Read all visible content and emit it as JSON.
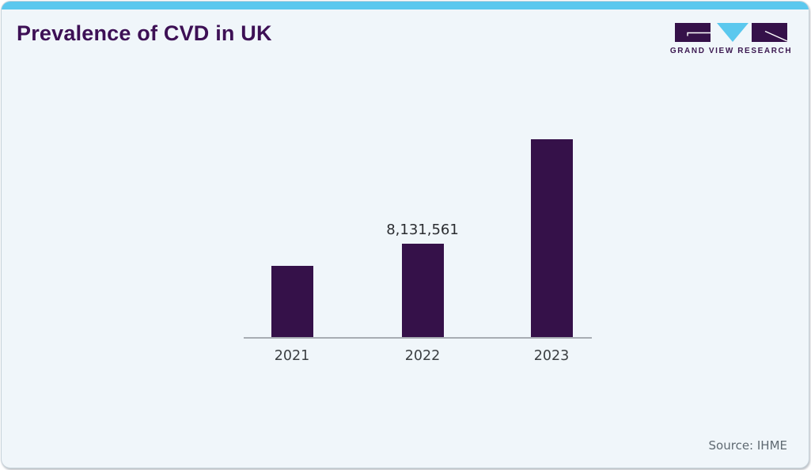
{
  "header": {
    "title": "Prevalence of CVD in UK",
    "logo_text": "GRAND VIEW RESEARCH"
  },
  "footer": {
    "source": "Source: IHME"
  },
  "colors": {
    "accent_strip": "#5bc8ee",
    "bar": "#351149",
    "title_text": "#3d1055",
    "card_background": "#f0f6fa",
    "axis_line": "#a8adb3"
  },
  "chart_data": {
    "type": "bar",
    "title": "Prevalence of CVD in UK",
    "categories": [
      "2021",
      "2022",
      "2023"
    ],
    "values": [
      6200000,
      8131561,
      17230000
    ],
    "value_labels": [
      "",
      "8,131,561",
      ""
    ],
    "bar_color": "#351149",
    "xlabel": "",
    "ylabel": "",
    "ylim": [
      0,
      17500000
    ],
    "grid": false,
    "legend": false,
    "y_axis_shown": false
  }
}
